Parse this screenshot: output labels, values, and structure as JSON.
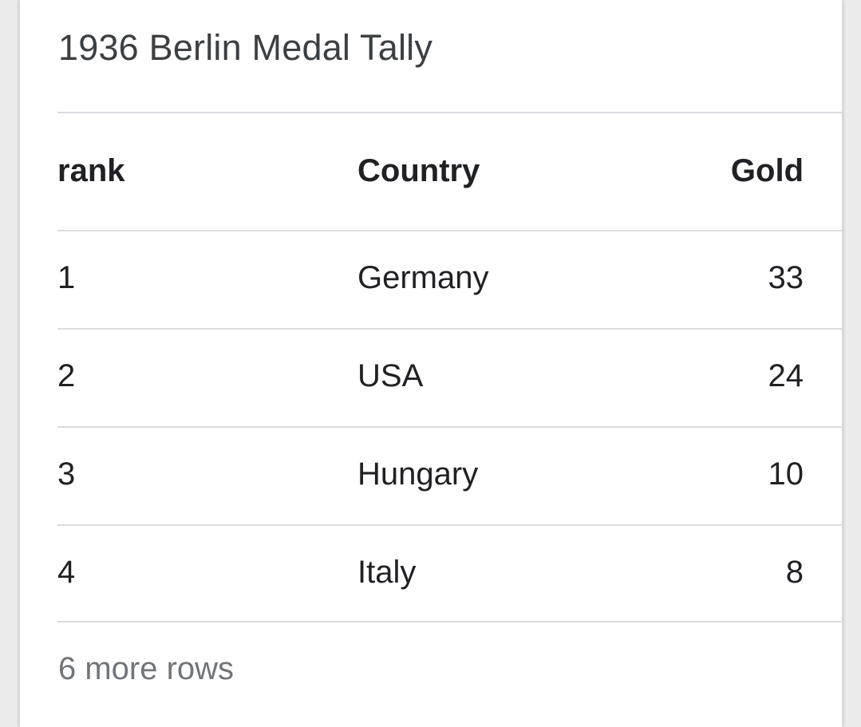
{
  "card": {
    "title": "1936 Berlin Medal Tally",
    "columns": [
      "rank",
      "Country",
      "Gold"
    ],
    "rows": [
      {
        "rank": "1",
        "country": "Germany",
        "gold": "33"
      },
      {
        "rank": "2",
        "country": "USA",
        "gold": "24"
      },
      {
        "rank": "3",
        "country": "Hungary",
        "gold": "10"
      },
      {
        "rank": "4",
        "country": "Italy",
        "gold": "8"
      }
    ],
    "more_rows_label": "6 more rows"
  }
}
